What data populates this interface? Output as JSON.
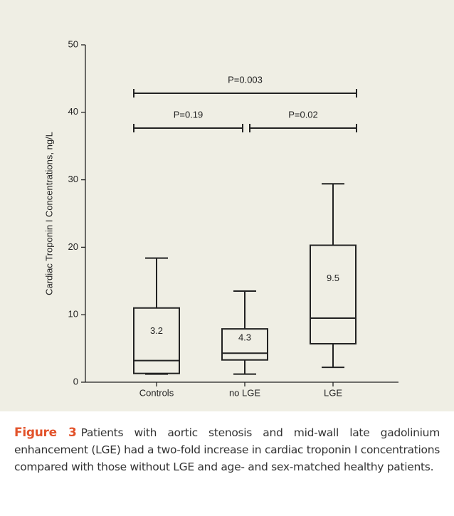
{
  "chart_data": {
    "type": "box",
    "y_label": "Cardiac Troponin I Concentrations, ng/L",
    "categories": [
      "Controls",
      "no LGE",
      "LGE"
    ],
    "boxes": [
      {
        "whislo": 1.2,
        "q1": 1.3,
        "med": 3.2,
        "q3": 11,
        "whishi": 18.4
      },
      {
        "whislo": 1.2,
        "q1": 3.3,
        "med": 4.3,
        "q3": 7.9,
        "whishi": 13.5
      },
      {
        "whislo": 2.2,
        "q1": 5.7,
        "med": 9.5,
        "q3": 20.3,
        "whishi": 29.4
      }
    ],
    "annotations": [
      "P=0.003",
      "P=0.19",
      "P=0.02"
    ],
    "ylim": [
      0,
      50
    ],
    "yticks": [
      0,
      10,
      20,
      30,
      40,
      50
    ],
    "color": "#222222"
  },
  "caption": {
    "label": "Figure 3",
    "text": "Patients with aortic stenosis and mid-wall late gadolinium enhancement (LGE) had a two-fold increase in cardiac troponin I concentrations compared with those without LGE and age- and sex-matched healthy patients."
  }
}
